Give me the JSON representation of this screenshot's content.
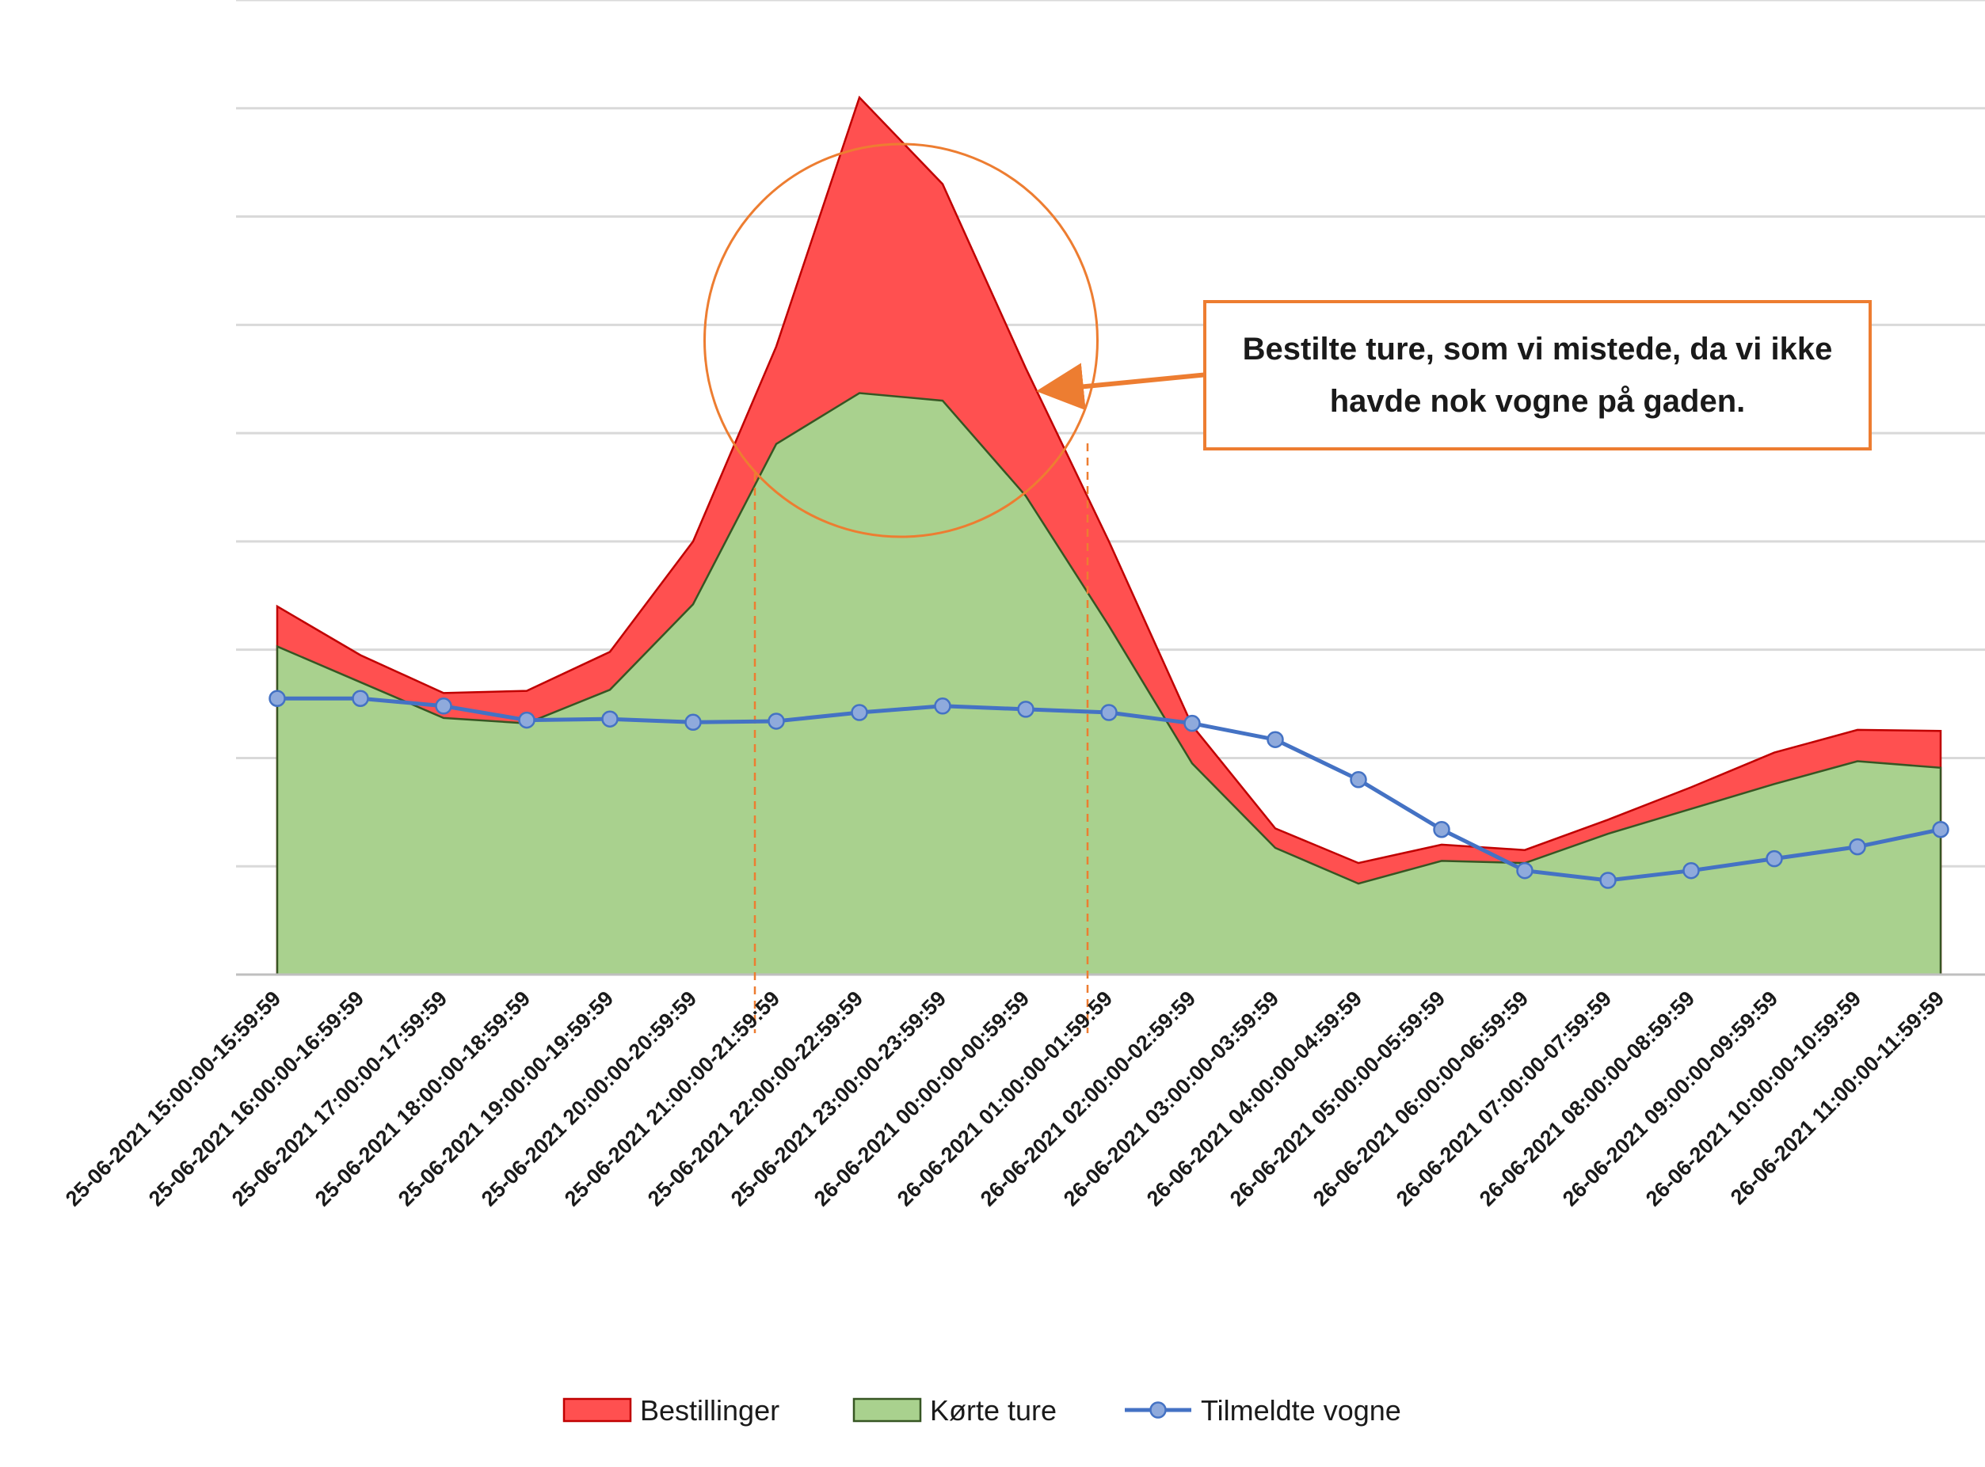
{
  "chart_data": {
    "type": "area",
    "title": "",
    "xlabel": "",
    "ylabel": "",
    "ylim": [
      0,
      9
    ],
    "grid": true,
    "y_tick_labels_shown": false,
    "legend_position": "bottom",
    "categories": [
      "25-06-2021 15:00:00-15:59:59",
      "25-06-2021 16:00:00-16:59:59",
      "25-06-2021 17:00:00-17:59:59",
      "25-06-2021 18:00:00-18:59:59",
      "25-06-2021 19:00:00-19:59:59",
      "25-06-2021 20:00:00-20:59:59",
      "25-06-2021 21:00:00-21:59:59",
      "25-06-2021 22:00:00-22:59:59",
      "25-06-2021 23:00:00-23:59:59",
      "26-06-2021 00:00:00-00:59:59",
      "26-06-2021 01:00:00-01:59:59",
      "26-06-2021 02:00:00-02:59:59",
      "26-06-2021 03:00:00-03:59:59",
      "26-06-2021 04:00:00-04:59:59",
      "26-06-2021 05:00:00-05:59:59",
      "26-06-2021 06:00:00-06:59:59",
      "26-06-2021 07:00:00-07:59:59",
      "26-06-2021 08:00:00-08:59:59",
      "26-06-2021 09:00:00-09:59:59",
      "26-06-2021 10:00:00-10:59:59",
      "26-06-2021 11:00:00-11:59:59"
    ],
    "series": [
      {
        "name": "Bestillinger",
        "kind": "area",
        "color": "#ff5050",
        "stroke": "#c00000",
        "values": [
          3.4,
          2.95,
          2.6,
          2.62,
          2.98,
          4.0,
          5.8,
          8.1,
          7.3,
          5.6,
          4.0,
          2.3,
          1.35,
          1.03,
          1.2,
          1.15,
          1.43,
          1.73,
          2.05,
          2.26,
          2.25
        ]
      },
      {
        "name": "Kørte ture",
        "kind": "area",
        "color": "#a9d18e",
        "stroke": "#375623",
        "values": [
          3.03,
          2.7,
          2.37,
          2.32,
          2.63,
          3.42,
          4.9,
          5.37,
          5.3,
          4.42,
          3.22,
          1.95,
          1.17,
          0.84,
          1.05,
          1.03,
          1.3,
          1.53,
          1.76,
          1.97,
          1.91
        ]
      },
      {
        "name": "Tilmeldte vogne",
        "kind": "line",
        "color": "#4472c4",
        "marker_fill": "#8faadc",
        "values": [
          2.55,
          2.55,
          2.48,
          2.35,
          2.36,
          2.33,
          2.34,
          2.42,
          2.48,
          2.45,
          2.42,
          2.32,
          2.17,
          1.8,
          1.34,
          0.96,
          0.87,
          0.96,
          1.07,
          1.18,
          1.34
        ]
      }
    ],
    "annotations": {
      "callout_text": "Bestilte ture, som vi mistede, da vi ikke havde nok vogne på gaden.",
      "colors": {
        "callout_border": "#ed7d31",
        "circle": "#ed7d31",
        "arrow": "#ed7d31",
        "dashed_lines": "#ed7d31"
      },
      "dashed_lines_at_categories": [
        6,
        10
      ],
      "highlight_circle_centered_on_categories": [
        7,
        8
      ]
    }
  }
}
